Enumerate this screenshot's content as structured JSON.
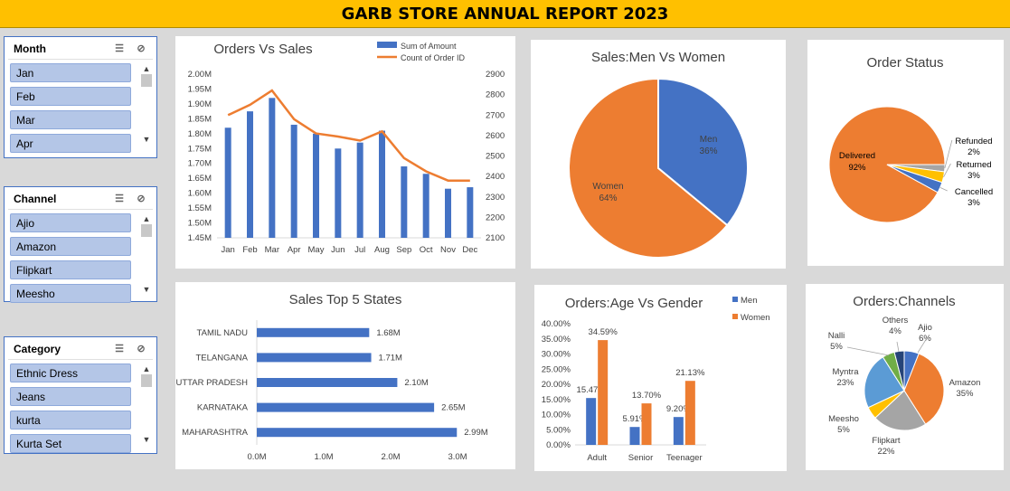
{
  "report_title": "GARB STORE ANNUAL REPORT 2023",
  "slicers": [
    {
      "title": "Month",
      "items": [
        "Jan",
        "Feb",
        "Mar",
        "Apr"
      ]
    },
    {
      "title": "Channel",
      "items": [
        "Ajio",
        "Amazon",
        "Flipkart",
        "Meesho"
      ]
    },
    {
      "title": "Category",
      "items": [
        "Ethnic Dress",
        "Jeans",
        "kurta",
        "Kurta Set"
      ]
    }
  ],
  "icons": {
    "multiselect": "multi-select-icon",
    "clear": "clear-filter-icon",
    "up": "scroll-up-icon",
    "down": "scroll-down-icon"
  },
  "chart_data": [
    {
      "type": "bar",
      "title": "Orders Vs Sales",
      "categories": [
        "Jan",
        "Feb",
        "Mar",
        "Apr",
        "May",
        "Jun",
        "Jul",
        "Aug",
        "Sep",
        "Oct",
        "Nov",
        "Dec"
      ],
      "series": [
        {
          "name": "Sum of Amount",
          "type": "bar",
          "axis": "left",
          "color": "#4472c4",
          "values": [
            1820000,
            1875000,
            1920000,
            1830000,
            1800000,
            1750000,
            1770000,
            1810000,
            1690000,
            1665000,
            1615000,
            1620000
          ]
        },
        {
          "name": "Count of Order ID",
          "type": "line",
          "axis": "right",
          "color": "#ed7d31",
          "values": [
            2700,
            2750,
            2820,
            2680,
            2610,
            2595,
            2575,
            2620,
            2490,
            2425,
            2380,
            2380
          ]
        }
      ],
      "ylim": [
        1450000,
        2000000
      ],
      "y_ticks": [
        "2.00M",
        "1.95M",
        "1.90M",
        "1.85M",
        "1.80M",
        "1.75M",
        "1.70M",
        "1.65M",
        "1.60M",
        "1.55M",
        "1.50M",
        "1.45M"
      ],
      "y2lim": [
        2100,
        2900
      ],
      "y2_ticks": [
        "2900",
        "2800",
        "2700",
        "2600",
        "2500",
        "2400",
        "2300",
        "2200",
        "2100"
      ],
      "legend": "top-right"
    },
    {
      "type": "pie",
      "title": "Sales:Men Vs Women",
      "slices": [
        {
          "label": "Men",
          "value": 36,
          "pct": "36%",
          "color": "#4472c4"
        },
        {
          "label": "Women",
          "value": 64,
          "pct": "64%",
          "color": "#ed7d31"
        }
      ]
    },
    {
      "type": "pie",
      "title": "Order Status",
      "slices": [
        {
          "label": "Delivered",
          "value": 92,
          "pct": "92%",
          "color": "#ed7d31"
        },
        {
          "label": "Refunded",
          "value": 2,
          "pct": "2%",
          "color": "#a5a5a5"
        },
        {
          "label": "Returned",
          "value": 3,
          "pct": "3%",
          "color": "#ffc000"
        },
        {
          "label": "Cancelled",
          "value": 3,
          "pct": "3%",
          "color": "#4472c4"
        }
      ]
    },
    {
      "type": "bar",
      "orientation": "horizontal",
      "title": "Sales Top 5 States",
      "categories": [
        "TAMIL NADU",
        "TELANGANA",
        "UTTAR PRADESH",
        "KARNATAKA",
        "MAHARASHTRA"
      ],
      "values": [
        1680000,
        1710000,
        2100000,
        2650000,
        2990000
      ],
      "value_labels": [
        "1.68M",
        "1.71M",
        "2.10M",
        "2.65M",
        "2.99M"
      ],
      "xlim": [
        0,
        3000000
      ],
      "x_ticks": [
        "0.0M",
        "1.0M",
        "2.0M",
        "3.0M"
      ],
      "color": "#4472c4"
    },
    {
      "type": "bar",
      "title": "Orders:Age Vs Gender",
      "categories": [
        "Adult",
        "Senior",
        "Teenager"
      ],
      "series": [
        {
          "name": "Men",
          "color": "#4472c4",
          "values": [
            15.47,
            5.91,
            9.2
          ],
          "labels": [
            "15.47%",
            "5.91%",
            "9.20%"
          ]
        },
        {
          "name": "Women",
          "color": "#ed7d31",
          "values": [
            34.59,
            13.7,
            21.13
          ],
          "labels": [
            "34.59%",
            "13.70%",
            "21.13%"
          ]
        }
      ],
      "ylim": [
        0,
        40
      ],
      "y_ticks": [
        "40.00%",
        "35.00%",
        "30.00%",
        "25.00%",
        "20.00%",
        "15.00%",
        "10.00%",
        "5.00%",
        "0.00%"
      ],
      "legend": "top-right"
    },
    {
      "type": "pie",
      "title": "Orders:Channels",
      "slices": [
        {
          "label": "Ajio",
          "value": 6,
          "pct": "6%",
          "color": "#4472c4"
        },
        {
          "label": "Amazon",
          "value": 35,
          "pct": "35%",
          "color": "#ed7d31"
        },
        {
          "label": "Flipkart",
          "value": 22,
          "pct": "22%",
          "color": "#a5a5a5"
        },
        {
          "label": "Meesho",
          "value": 5,
          "pct": "5%",
          "color": "#ffc000"
        },
        {
          "label": "Myntra",
          "value": 23,
          "pct": "23%",
          "color": "#5b9bd5"
        },
        {
          "label": "Nalli",
          "value": 5,
          "pct": "5%",
          "color": "#70ad47"
        },
        {
          "label": "Others",
          "value": 4,
          "pct": "4%",
          "color": "#264478"
        }
      ]
    }
  ]
}
